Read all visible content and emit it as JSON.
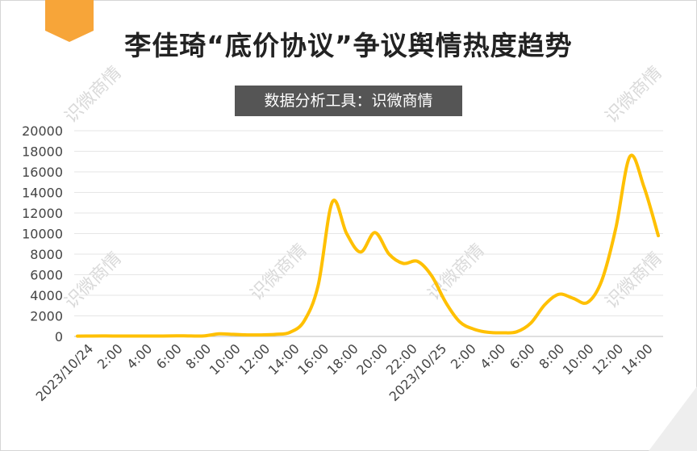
{
  "title": "李佳琦“底价协议”争议舆情热度趋势",
  "subtitle": "数据分析工具：识微商情",
  "watermark": "识微商情",
  "colors": {
    "line": "#FFC000",
    "tag": "#F7A539",
    "subtitle_bg": "#555555"
  },
  "chart_data": {
    "type": "line",
    "title": "李佳琦“底价协议”争议舆情热度趋势",
    "subtitle": "数据分析工具：识微商情",
    "xlabel": "",
    "ylabel": "",
    "ylim": [
      0,
      20000
    ],
    "yticks": [
      "0",
      "2000",
      "4000",
      "6000",
      "8000",
      "10000",
      "12000",
      "14000",
      "16000",
      "18000",
      "20000"
    ],
    "grid": true,
    "xtick_labels": [
      "2023/10/24",
      "2:00",
      "4:00",
      "6:00",
      "8:00",
      "10:00",
      "12:00",
      "14:00",
      "16:00",
      "18:00",
      "20:00",
      "22:00",
      "2023/10/25",
      "2:00",
      "4:00",
      "6:00",
      "8:00",
      "10:00",
      "12:00",
      "14:00"
    ],
    "series": [
      {
        "values": [
          30,
          40,
          50,
          40,
          40,
          40,
          40,
          60,
          50,
          60,
          250,
          200,
          150,
          150,
          200,
          400,
          1500,
          5000,
          13100,
          10000,
          8200,
          10100,
          8000,
          7100,
          7300,
          5900,
          3300,
          1400,
          700,
          400,
          350,
          450,
          1300,
          3100,
          4100,
          3700,
          3300,
          5400,
          10500,
          17500,
          14500,
          9800
        ]
      }
    ]
  }
}
